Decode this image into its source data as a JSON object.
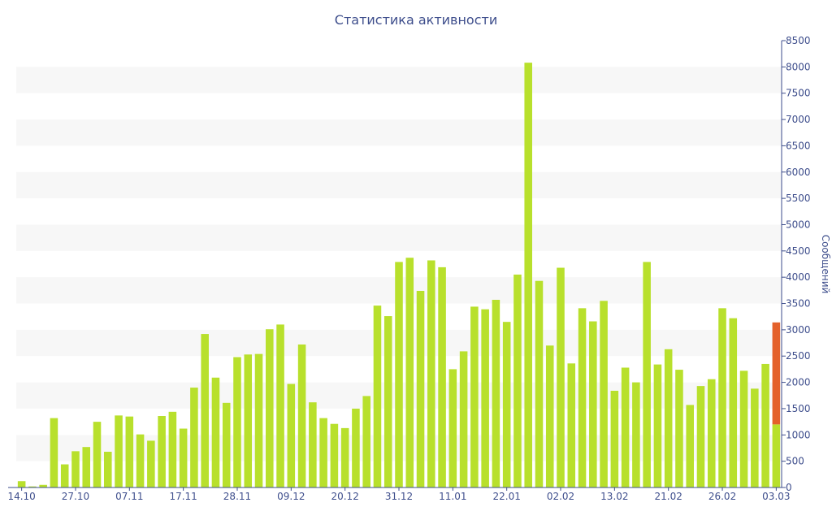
{
  "chart_data": {
    "type": "bar",
    "title": "Статистика активности",
    "ylabel": "Сообщений",
    "xlabel": "",
    "ylim": [
      0,
      8500
    ],
    "yticks": [
      0,
      500,
      1000,
      1500,
      2000,
      2500,
      3000,
      3500,
      4000,
      4500,
      5000,
      5500,
      6000,
      6500,
      7000,
      7500,
      8000,
      8500
    ],
    "y_axis_position": "right",
    "grid": "alternating horizontal bands",
    "x_tick_labels": [
      {
        "index": 0,
        "label": "14.10"
      },
      {
        "index": 5,
        "label": "27.10"
      },
      {
        "index": 10,
        "label": "07.11"
      },
      {
        "index": 15,
        "label": "17.11"
      },
      {
        "index": 20,
        "label": "28.11"
      },
      {
        "index": 25,
        "label": "09.12"
      },
      {
        "index": 30,
        "label": "20.12"
      },
      {
        "index": 35,
        "label": "31.12"
      },
      {
        "index": 40,
        "label": "11.01"
      },
      {
        "index": 45,
        "label": "22.01"
      },
      {
        "index": 50,
        "label": "02.02"
      },
      {
        "index": 55,
        "label": "13.02"
      },
      {
        "index": 60,
        "label": "21.02"
      },
      {
        "index": 65,
        "label": "26.02"
      },
      {
        "index": 70,
        "label": "03.03"
      }
    ],
    "values": [
      120,
      20,
      50,
      1320,
      440,
      690,
      770,
      1250,
      680,
      1370,
      1350,
      1010,
      890,
      1360,
      1440,
      1120,
      1900,
      2920,
      2090,
      1610,
      2480,
      2530,
      2540,
      3010,
      3100,
      1970,
      2720,
      1620,
      1320,
      1210,
      1130,
      1500,
      1740,
      3460,
      3260,
      4290,
      4370,
      3740,
      4320,
      4190,
      2250,
      2590,
      3440,
      3390,
      3570,
      3150,
      4050,
      8080,
      3930,
      2700,
      4180,
      2360,
      3410,
      3160,
      3550,
      1840,
      2280,
      2000,
      4290,
      2340,
      2630,
      2240,
      1570,
      1930,
      2060,
      3410,
      3220,
      2220,
      1880,
      2350,
      1200
    ],
    "last_bar_extra": 1940,
    "colors": {
      "bar": "#b8e02c",
      "highlight": "#e4612b",
      "band": "#f7f7f7",
      "axis": "#3e4e8c"
    }
  }
}
